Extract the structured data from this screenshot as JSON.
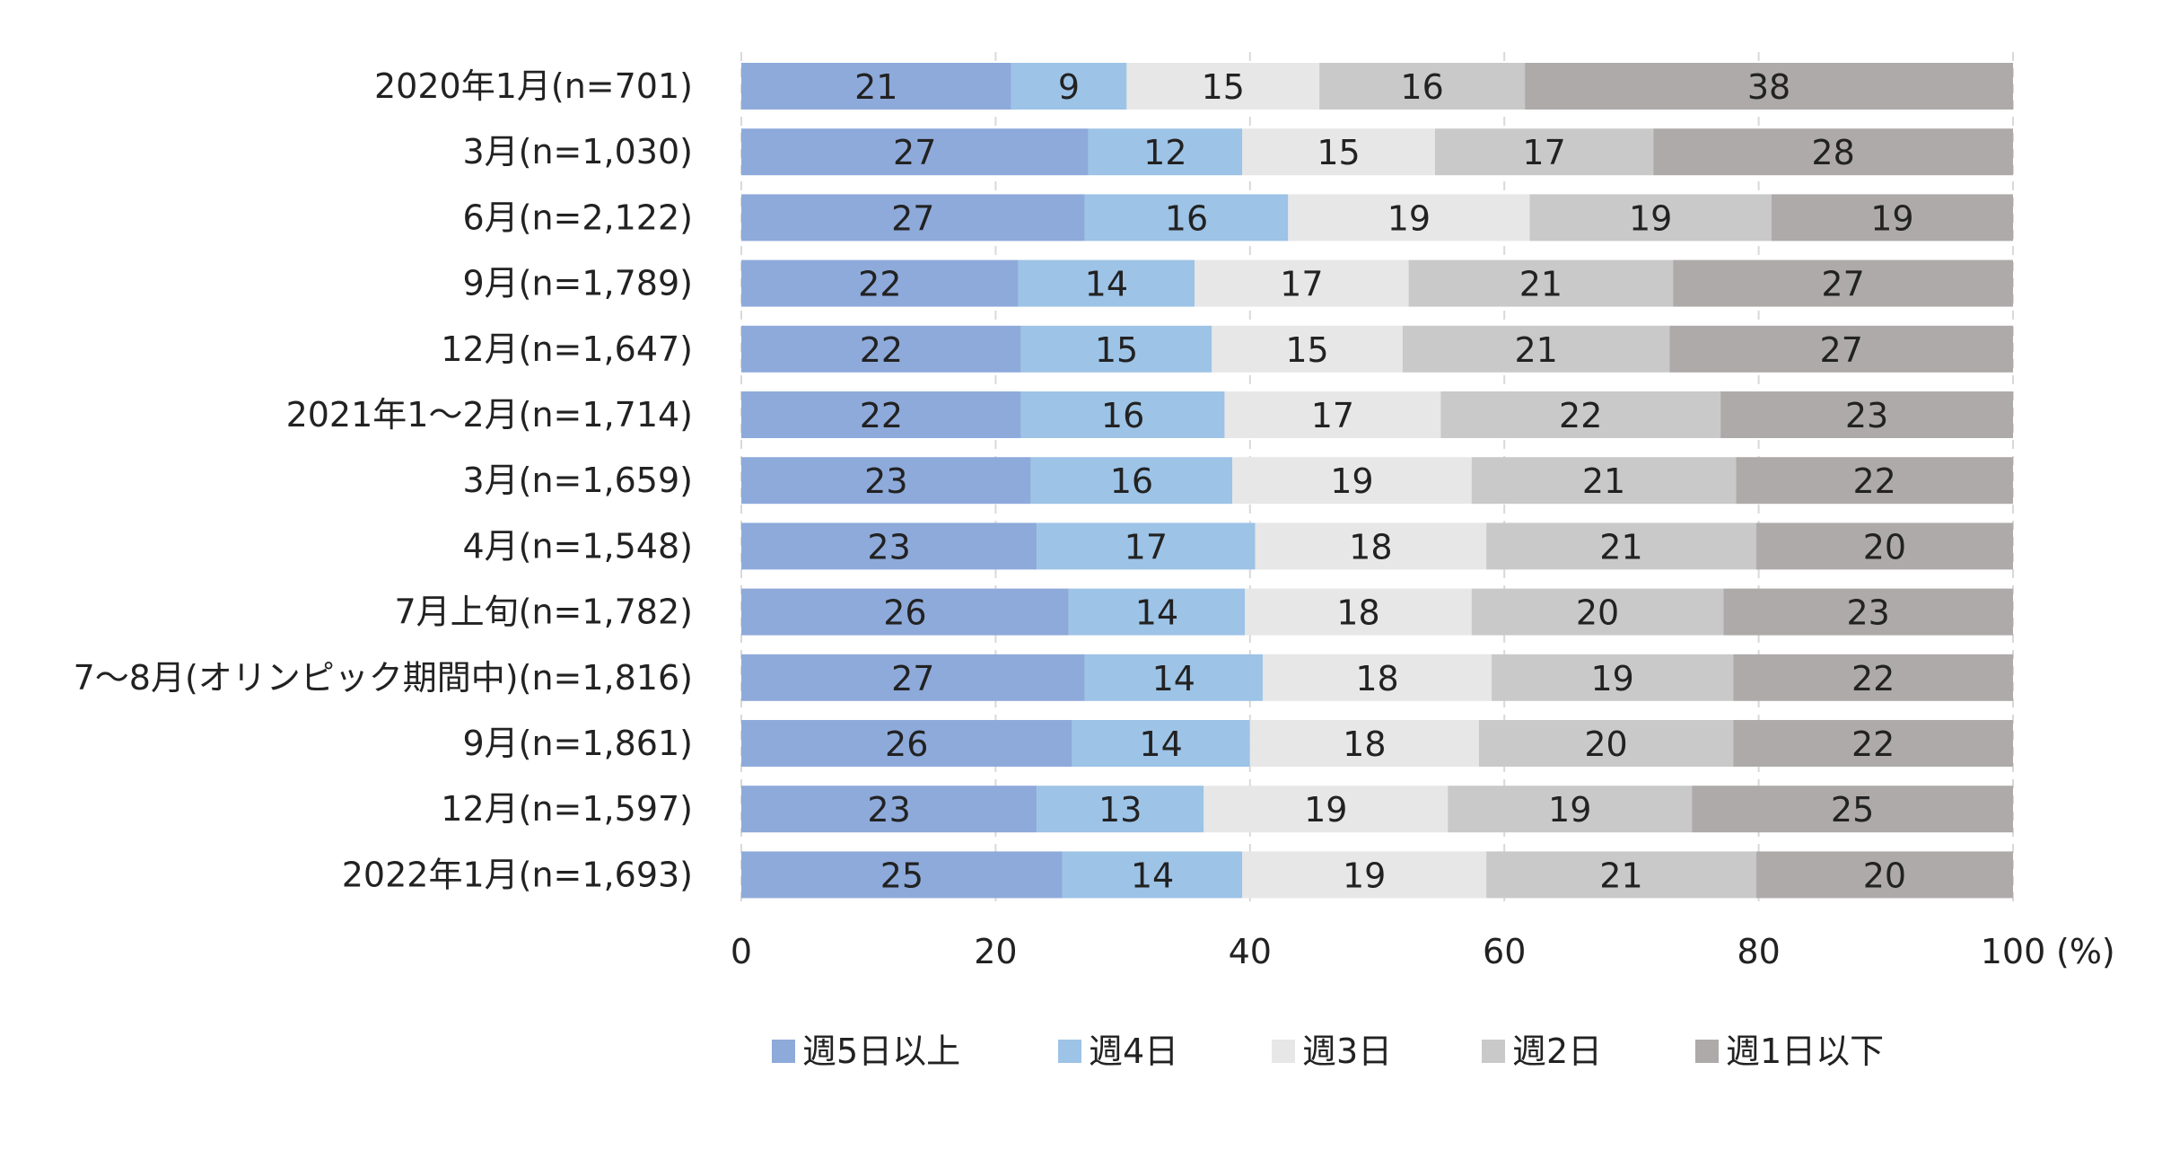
{
  "chart_data": {
    "type": "bar",
    "orientation": "horizontal",
    "stacked": true,
    "categories": [
      "2020年1月(n=701)",
      "3月(n=1,030)",
      "6月(n=2,122)",
      "9月(n=1,789)",
      "12月(n=1,647)",
      "2021年1～2月(n=1,714)",
      "3月(n=1,659)",
      "4月(n=1,548)",
      "7月上旬(n=1,782)",
      "7～8月(オリンピック期間中)(n=1,816)",
      "9月(n=1,861)",
      "12月(n=1,597)",
      "2022年1月(n=1,693)"
    ],
    "series": [
      {
        "name": "週5日以上",
        "color": "#8eaadb",
        "values": [
          21,
          27,
          27,
          22,
          22,
          22,
          23,
          23,
          26,
          27,
          26,
          23,
          25
        ]
      },
      {
        "name": "週4日",
        "color": "#9dc3e6",
        "values": [
          9,
          12,
          16,
          14,
          15,
          16,
          16,
          17,
          14,
          14,
          14,
          13,
          14
        ]
      },
      {
        "name": "週3日",
        "color": "#e7e7e7",
        "values": [
          15,
          15,
          19,
          17,
          15,
          17,
          19,
          18,
          18,
          18,
          18,
          19,
          19
        ]
      },
      {
        "name": "週2日",
        "color": "#c9c9c9",
        "values": [
          16,
          17,
          19,
          21,
          21,
          22,
          21,
          21,
          20,
          19,
          20,
          19,
          21
        ]
      },
      {
        "name": "週1日以下",
        "color": "#aeaaaa",
        "values": [
          38,
          28,
          19,
          27,
          27,
          23,
          22,
          20,
          23,
          22,
          22,
          25,
          20
        ]
      }
    ],
    "xlim": [
      0,
      100
    ],
    "xticks": [
      "0",
      "20",
      "40",
      "60",
      "80",
      "100"
    ],
    "x_unit": "(%)",
    "grid": true,
    "legend_position": "bottom"
  }
}
